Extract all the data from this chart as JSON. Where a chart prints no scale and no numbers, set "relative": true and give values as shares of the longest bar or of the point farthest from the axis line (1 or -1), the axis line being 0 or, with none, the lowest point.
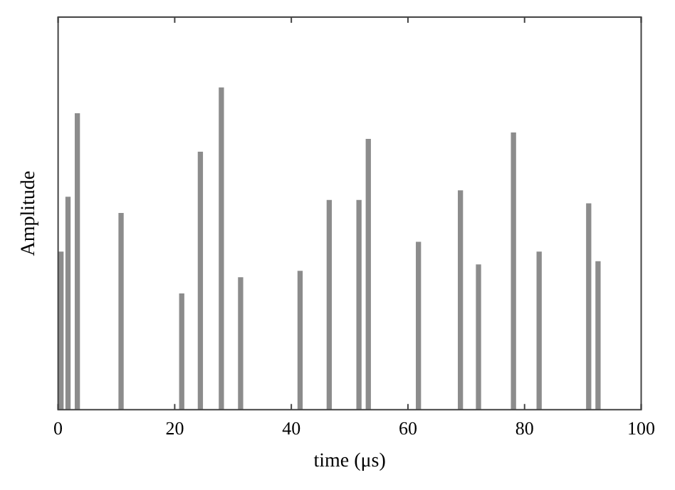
{
  "chart_data": {
    "type": "bar",
    "relative": true,
    "xlabel": "time (μs)",
    "ylabel": "Amplitude",
    "xlim": [
      0,
      100
    ],
    "xticks": [
      0,
      20,
      40,
      60,
      80,
      100
    ],
    "x": [
      0.5,
      1.7,
      3.3,
      10.8,
      21.2,
      24.4,
      28,
      31.3,
      41.5,
      46.5,
      51.6,
      53.2,
      61.8,
      69,
      72.1,
      78.1,
      82.5,
      91,
      92.6
    ],
    "values": [
      0.49,
      0.66,
      0.92,
      0.61,
      0.36,
      0.8,
      1,
      0.41,
      0.43,
      0.65,
      0.65,
      0.84,
      0.52,
      0.68,
      0.45,
      0.86,
      0.49,
      0.64,
      0.46
    ],
    "color": "#8c8c8c",
    "grid": false,
    "legend": false
  }
}
